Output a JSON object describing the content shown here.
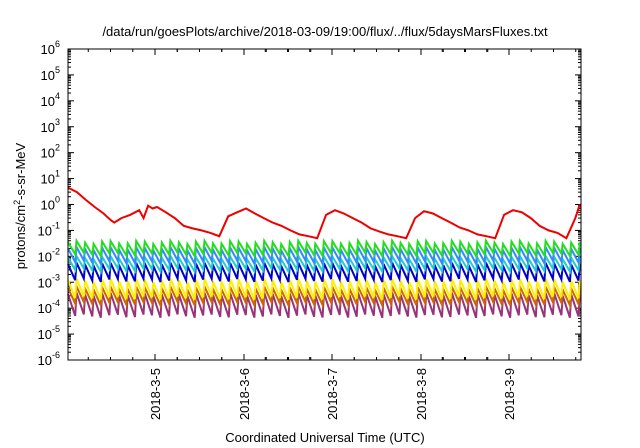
{
  "chart_data": {
    "type": "line",
    "title": "/data/run/goesPlots/archive/2018-03-09/19:00/flux/../flux/5daysMarsFluxes.txt",
    "xlabel": "Coordinated Universal Time (UTC)",
    "ylabel": "protons/cm^2-s-sr-MeV",
    "ylabel_parts": {
      "base": "protons/cm",
      "sup": "2",
      "rest": "-s-sr-MeV"
    },
    "yscale": "log",
    "ylim": [
      1e-06,
      1000000.0
    ],
    "ytick_base": "10",
    "ytick_exponents": [
      "-6",
      "-5",
      "-4",
      "-3",
      "-2",
      "-1",
      "0",
      "1",
      "2",
      "3",
      "4",
      "5",
      "6"
    ],
    "xlim": [
      "2018-03-04 01:00",
      "2018-03-09 19:00"
    ],
    "xticks": [
      "2018-3-5",
      "2018-3-6",
      "2018-3-7",
      "2018-3-8",
      "2018-3-9"
    ],
    "grid": false,
    "legend": "none",
    "series": [
      {
        "color": "#ee0000",
        "x": [
          0,
          0.1,
          0.2,
          0.3,
          0.4,
          0.48,
          0.52,
          0.6,
          0.7,
          0.8,
          0.85,
          0.9,
          0.95,
          1.0,
          1.1,
          1.2,
          1.3,
          1.4,
          1.5,
          1.6,
          1.7,
          1.8,
          1.9,
          2.0,
          2.1,
          2.2,
          2.3,
          2.4,
          2.5,
          2.6,
          2.7,
          2.8,
          2.9,
          3.0,
          3.1,
          3.2,
          3.3,
          3.4,
          3.5,
          3.6,
          3.7,
          3.8,
          3.9,
          4.0,
          4.1,
          4.2,
          4.3,
          4.4,
          4.5,
          4.6,
          4.7,
          4.8,
          4.9,
          5.0,
          5.1,
          5.2,
          5.3,
          5.4,
          5.5,
          5.6,
          5.7,
          5.75
        ],
        "y": [
          4.5,
          3.0,
          1.5,
          0.8,
          0.45,
          0.25,
          0.2,
          0.3,
          0.4,
          0.6,
          0.3,
          0.9,
          0.7,
          0.8,
          0.5,
          0.3,
          0.15,
          0.12,
          0.1,
          0.08,
          0.06,
          0.35,
          0.5,
          0.7,
          0.45,
          0.3,
          0.2,
          0.15,
          0.1,
          0.07,
          0.06,
          0.05,
          0.4,
          0.6,
          0.45,
          0.3,
          0.2,
          0.12,
          0.09,
          0.07,
          0.06,
          0.05,
          0.3,
          0.55,
          0.45,
          0.3,
          0.2,
          0.13,
          0.1,
          0.07,
          0.06,
          0.05,
          0.4,
          0.6,
          0.5,
          0.3,
          0.15,
          0.1,
          0.08,
          0.05,
          0.3,
          1.0
        ]
      },
      {
        "color": "#22dd22",
        "x_start": 0,
        "x_end": 5.75,
        "cycles": 60,
        "y_low": 0.012,
        "y_high": 0.035
      },
      {
        "color": "#3388ff",
        "x_start": 0,
        "x_end": 5.75,
        "cycles": 60,
        "y_low": 0.006,
        "y_high": 0.02
      },
      {
        "color": "#22cccc",
        "x_start": 0,
        "x_end": 5.75,
        "cycles": 60,
        "y_low": 0.003,
        "y_high": 0.009
      },
      {
        "color": "#0000cc",
        "x_start": 0,
        "x_end": 5.75,
        "cycles": 60,
        "y_low": 0.0012,
        "y_high": 0.005
      },
      {
        "color": "#ffee00",
        "x_start": 0,
        "x_end": 5.75,
        "cycles": 60,
        "y_low": 0.00025,
        "y_high": 0.0012
      },
      {
        "color": "#cc6600",
        "x_start": 0,
        "x_end": 5.75,
        "cycles": 60,
        "y_low": 0.00015,
        "y_high": 0.0006
      },
      {
        "color": "#993377",
        "x_start": 0,
        "x_end": 5.75,
        "cycles": 60,
        "y_low": 5e-05,
        "y_high": 0.00035
      }
    ]
  }
}
